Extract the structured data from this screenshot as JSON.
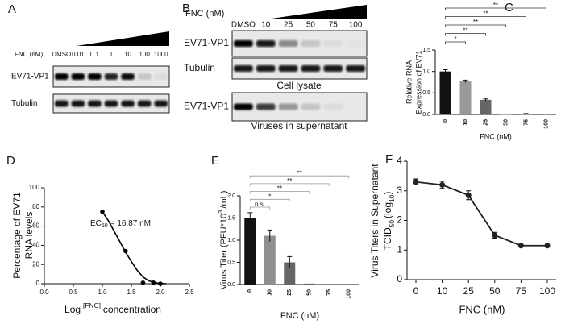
{
  "panel_labels": [
    "A",
    "B",
    "C",
    "D",
    "E",
    "F"
  ],
  "blots": [
    {
      "axis_label": "FNC (nM)",
      "lanes": [
        "DMSO",
        "0.01",
        "0.1",
        "1",
        "10",
        "100",
        "1000"
      ],
      "rows": [
        "EV71-VP1",
        "Tubulin"
      ]
    },
    {
      "axis_label": "FNC (nM)",
      "lanes": [
        "DMSO",
        "10",
        "25",
        "50",
        "75",
        "100"
      ],
      "rows": [
        "EV71-VP1",
        "Tubulin",
        "EV71-VP1"
      ],
      "captions": [
        "Cell lysate",
        "Viruses in supernatant"
      ]
    }
  ],
  "chart_data": [
    {
      "type": "bar",
      "categories": [
        "0",
        "10",
        "25",
        "50",
        "75",
        "100"
      ],
      "values": [
        1,
        0.77,
        0.34,
        0.005,
        0.01,
        0.002
      ],
      "errors": [
        0.04,
        0.03,
        0.02,
        0,
        0.01,
        0
      ],
      "colors": [
        "#111111",
        "#9a9a9a",
        "#666666",
        "#666666",
        "#666666",
        "#666666"
      ],
      "ylim": [
        0,
        1.5
      ],
      "yticks": [
        {
          "value": 0,
          "label": "0.0"
        },
        {
          "value": 0.5,
          "label": "0.5"
        },
        {
          "value": 1,
          "label": "1.0"
        },
        {
          "value": 1.5,
          "label": "1.5"
        }
      ],
      "significance": [
        "*",
        "**",
        "**",
        "**",
        "**"
      ],
      "y_label": [
        "Relative RNA",
        "Expression of EV71"
      ],
      "x_label": "FNC (nM)"
    },
    {
      "type": "scatter",
      "x": [
        1,
        1.4,
        1.7,
        1.88,
        2
      ],
      "values": [
        75,
        34,
        1,
        1,
        0
      ],
      "color": "#000000",
      "fit": {
        "x": [
          1,
          1.1,
          1.2,
          1.3,
          1.4,
          1.5,
          1.6,
          1.7,
          1.8,
          1.9,
          2,
          2.1
        ],
        "values": [
          75,
          66,
          55,
          44,
          33,
          23,
          14,
          7,
          3,
          1,
          0.3,
          0
        ]
      },
      "xlim": [
        0,
        2.5
      ],
      "xticks": [
        {
          "value": 0,
          "label": "0.0"
        },
        {
          "value": 0.5,
          "label": "0.5"
        },
        {
          "value": 1,
          "label": "1.0"
        },
        {
          "value": 1.5,
          "label": "1.5"
        },
        {
          "value": 2,
          "label": "2.0"
        },
        {
          "value": 2.5,
          "label": "2.5"
        }
      ],
      "ylim": [
        0,
        100
      ],
      "yticks": [
        0,
        20,
        40,
        60,
        80,
        100
      ],
      "y_label": [
        "Percentage of EV71",
        "RNA levels"
      ],
      "x_label": [
        "Log",
        "[FNC]",
        "concentration"
      ],
      "annotation": [
        "EC",
        "50",
        "= 16.87 nM"
      ]
    },
    {
      "type": "bar",
      "categories": [
        "0",
        "10",
        "25",
        "50",
        "75",
        "100"
      ],
      "values": [
        1.5,
        1.1,
        0.5,
        0.02,
        0,
        0
      ],
      "errors": [
        0.12,
        0.13,
        0.13,
        0,
        0,
        0
      ],
      "colors": [
        "#111111",
        "#8f8f8f",
        "#666666",
        "#666666",
        "#666666",
        "#666666"
      ],
      "ylim": [
        0,
        2
      ],
      "yticks": [
        {
          "value": 0,
          "label": "0.0"
        },
        {
          "value": 0.5,
          "label": "0.5"
        },
        {
          "value": 1,
          "label": "1.0"
        },
        {
          "value": 1.5,
          "label": "1.5"
        },
        {
          "value": 2,
          "label": "2.0"
        }
      ],
      "significance": [
        "n.s.",
        "*",
        "**",
        "**",
        "**"
      ],
      "y_label": [
        "Virus Titer (PFU*10",
        "3",
        "/mL)"
      ],
      "x_label": "FNC (nM)"
    },
    {
      "type": "line",
      "categories": [
        "0",
        "10",
        "25",
        "50",
        "75",
        "100"
      ],
      "values": [
        3.3,
        3.2,
        2.85,
        1.5,
        1.15,
        1.15
      ],
      "errors": [
        0.1,
        0.12,
        0.15,
        0.1,
        0.04,
        0.04
      ],
      "color": "#222222",
      "ylim": [
        0,
        4
      ],
      "yticks": [
        0,
        1,
        2,
        3,
        4
      ],
      "y_label": {
        "line1": "Virus Titers in Supernatant",
        "line2": [
          "TCID",
          "50",
          "(log",
          "10",
          ")"
        ]
      },
      "x_label": "FNC (nM)"
    }
  ]
}
